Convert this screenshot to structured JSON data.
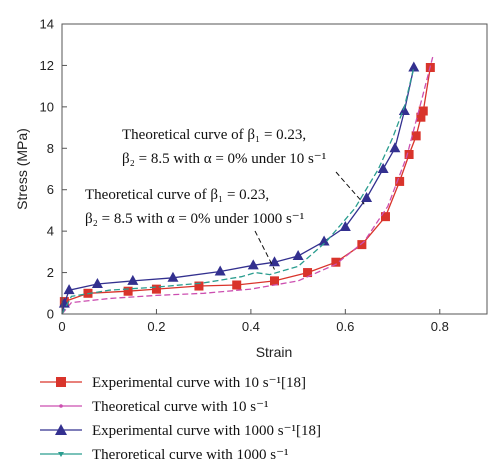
{
  "chart_data": {
    "type": "line",
    "xlabel": "Strain",
    "ylabel": "Stress (MPa)",
    "xlim": [
      0,
      0.9
    ],
    "ylim": [
      0,
      14
    ],
    "xticks": [
      "0",
      "0.2",
      "0.4",
      "0.6",
      "0.8"
    ],
    "xtick_values": [
      0,
      0.2,
      0.4,
      0.6,
      0.8
    ],
    "yticks": [
      "0",
      "2",
      "4",
      "6",
      "8",
      "10",
      "12",
      "14"
    ],
    "ytick_values": [
      0,
      2,
      4,
      6,
      8,
      10,
      12,
      14
    ],
    "grid": false,
    "legend_position": "below",
    "series": [
      {
        "name": "Experimental curve with 10 s⁻¹[18]",
        "color": "#d9342b",
        "marker": "square",
        "style": "solid",
        "x": [
          0,
          0.005,
          0.055,
          0.14,
          0.2,
          0.29,
          0.37,
          0.45,
          0.52,
          0.58,
          0.635,
          0.685,
          0.715,
          0.735,
          0.75,
          0.76,
          0.765,
          0.78
        ],
        "y": [
          0,
          0.6,
          1.0,
          1.1,
          1.2,
          1.35,
          1.4,
          1.6,
          2.0,
          2.5,
          3.35,
          4.7,
          6.4,
          7.7,
          8.6,
          9.5,
          9.8,
          11.9
        ]
      },
      {
        "name": "Theoretical curve with 10 s⁻¹",
        "color": "#cc4fb0",
        "marker": "none",
        "style": "dashed",
        "x": [
          0,
          0.02,
          0.1,
          0.2,
          0.3,
          0.4,
          0.5,
          0.58,
          0.64,
          0.69,
          0.73,
          0.76,
          0.785
        ],
        "y": [
          0,
          0.55,
          0.75,
          0.9,
          1.0,
          1.2,
          1.6,
          2.4,
          3.5,
          5.2,
          7.6,
          10.2,
          12.4
        ]
      },
      {
        "name": "Experimental curve with 1000 s⁻¹[18]",
        "color": "#33308f",
        "marker": "triangle",
        "style": "solid",
        "x": [
          0,
          0.005,
          0.015,
          0.075,
          0.15,
          0.235,
          0.335,
          0.405,
          0.45,
          0.5,
          0.555,
          0.6,
          0.645,
          0.68,
          0.705,
          0.725,
          0.745
        ],
        "y": [
          0,
          0.5,
          1.15,
          1.45,
          1.6,
          1.75,
          2.05,
          2.35,
          2.5,
          2.8,
          3.5,
          4.2,
          5.6,
          7.0,
          8.0,
          9.8,
          11.9
        ]
      },
      {
        "name": "Theroretical curve with 1000 s⁻¹",
        "color": "#2a9d8f",
        "marker": "none",
        "style": "dashed",
        "x": [
          0,
          0.02,
          0.1,
          0.2,
          0.3,
          0.38,
          0.41,
          0.44,
          0.5,
          0.56,
          0.62,
          0.67,
          0.7,
          0.725,
          0.745
        ],
        "y": [
          0,
          0.85,
          1.15,
          1.3,
          1.5,
          1.8,
          2.0,
          1.9,
          2.3,
          3.5,
          5.1,
          7.0,
          8.5,
          10.0,
          11.9
        ]
      }
    ],
    "annotations": [
      {
        "line1": "Theoretical curve of β₁ = 0.23,",
        "line2": "β₂ = 8.5 with α = 0% under 10 s⁻¹",
        "target": [
          0.64,
          5.3
        ]
      },
      {
        "line1": "Theoretical curve of β₁ = 0.23,",
        "line2": "β₂ = 8.5 with α = 0% under 1000 s⁻¹",
        "target": [
          0.45,
          2.15
        ]
      }
    ]
  }
}
